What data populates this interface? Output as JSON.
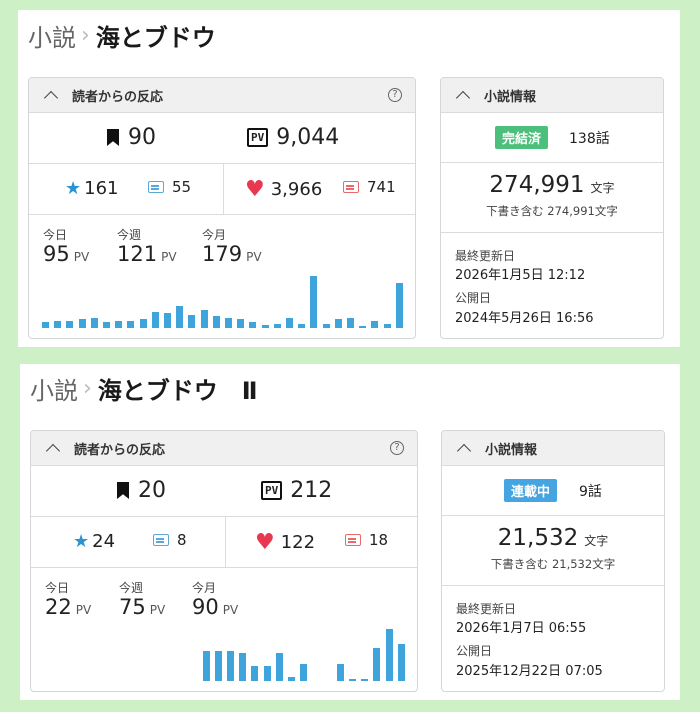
{
  "novels": [
    {
      "category": "小説",
      "chevron": "›",
      "title": "海とブドウ",
      "reactions": {
        "header": "読者からの反応",
        "help": "?",
        "bookmarks": "90",
        "pv_icon": "PV",
        "pv_total": "9,044",
        "stars": "161",
        "reviews": "55",
        "likes": "3,966",
        "comments": "741",
        "today_label": "今日",
        "today": "95",
        "week_label": "今週",
        "week": "121",
        "month_label": "今月",
        "month": "179",
        "unit": "PV",
        "daily_pv": [
          4,
          5,
          5,
          6,
          7,
          4,
          5,
          5,
          6,
          11,
          10,
          15,
          9,
          12,
          8,
          7,
          6,
          4,
          2,
          3,
          7,
          3,
          35,
          3,
          6,
          7,
          1,
          5,
          3,
          30
        ]
      },
      "info": {
        "header": "小説情報",
        "status": "完結済",
        "status_type": "done",
        "episodes": "138話",
        "char_count": "274,991",
        "char_unit": "文字",
        "draft_note": "下書き含む 274,991文字",
        "updated_label": "最終更新日",
        "updated": "2026年1月5日 12:12",
        "published_label": "公開日",
        "published": "2024年5月26日 16:56"
      }
    },
    {
      "category": "小説",
      "chevron": "›",
      "title": "海とブドウ　Ⅱ",
      "reactions": {
        "header": "読者からの反応",
        "help": "?",
        "bookmarks": "20",
        "pv_icon": "PV",
        "pv_total": "212",
        "stars": "24",
        "reviews": "8",
        "likes": "122",
        "comments": "18",
        "today_label": "今日",
        "today": "22",
        "week_label": "今週",
        "week": "75",
        "month_label": "今月",
        "month": "90",
        "unit": "PV",
        "daily_pv": [
          0,
          0,
          0,
          0,
          0,
          0,
          0,
          0,
          0,
          0,
          0,
          0,
          0,
          14,
          14,
          14,
          13,
          7,
          7,
          13,
          2,
          8,
          0,
          0,
          8,
          1,
          1,
          15,
          24,
          17
        ]
      },
      "info": {
        "header": "小説情報",
        "status": "連載中",
        "status_type": "ongoing",
        "episodes": "9話",
        "char_count": "21,532",
        "char_unit": "文字",
        "draft_note": "下書き含む 21,532文字",
        "updated_label": "最終更新日",
        "updated": "2026年1月7日 06:55",
        "published_label": "公開日",
        "published": "2025年12月22日 07:05"
      }
    }
  ],
  "colors": {
    "bar": "#3fa3dc",
    "badge_done": "#4bbf7b",
    "badge_ongoing": "#46a4e0",
    "heart": "#e8374e",
    "star": "#2b93d1"
  }
}
